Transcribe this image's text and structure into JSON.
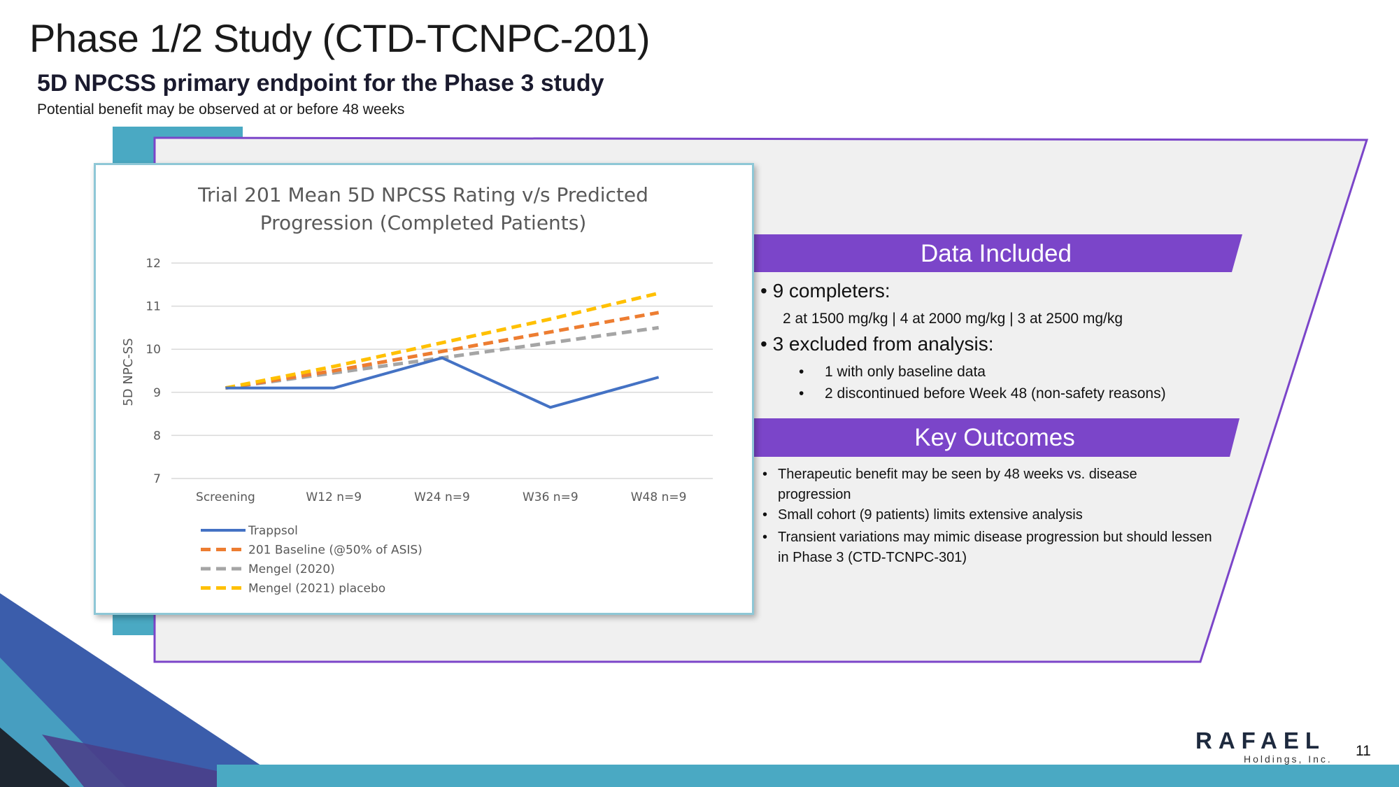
{
  "slide": {
    "title": "Phase 1/2 Study (CTD-TCNPC-201)",
    "subtitle": "5D NPCSS primary endpoint for the Phase 3 study",
    "tagline": "Potential benefit may be observed at or before 48 weeks",
    "page_number": "11"
  },
  "colors": {
    "purple": "#7b45c9",
    "teal": "#4aa9c3",
    "navy_blue": "#3b5dab",
    "dark": "#1e2630",
    "panel_bg": "#f0f0f0"
  },
  "data_included": {
    "heading": "Data Included",
    "completers": "• 9 completers:",
    "doses": "2 at 1500 mg/kg  |  4 at 2000 mg/kg  |  3 at 2500 mg/kg",
    "excluded": "• 3 excluded from analysis:",
    "excluded_items": [
      {
        "bullet": "•",
        "text": "1 with only baseline data"
      },
      {
        "bullet": "•",
        "text": "2 discontinued before Week 48 (non-safety reasons)"
      }
    ]
  },
  "key_outcomes": {
    "heading": "Key Outcomes",
    "items": [
      {
        "bullet": "•",
        "text": "Therapeutic benefit may be seen by 48 weeks vs. disease progression"
      },
      {
        "bullet": "•",
        "text": "Small cohort (9 patients) limits extensive analysis"
      },
      {
        "bullet": "•",
        "text": "Transient variations may mimic disease progression but should lessen in Phase 3 (CTD-TCNPC-301)"
      }
    ]
  },
  "logo": {
    "word": "RAFAEL",
    "sub": "Holdings, Inc."
  },
  "chart_data": {
    "type": "line",
    "title_lines": [
      "Trial 201 Mean 5D NPCSS Rating v/s Predicted",
      "Progression (Completed Patients)"
    ],
    "ylabel": "5D NPC-SS",
    "xlabel": "",
    "categories": [
      "Screening",
      "W12 n=9",
      "W24 n=9",
      "W36 n=9",
      "W48 n=9"
    ],
    "ylim": [
      7,
      12
    ],
    "yticks": [
      7,
      8,
      9,
      10,
      11,
      12
    ],
    "grid": true,
    "legend_position": "bottom-left",
    "series": [
      {
        "name": "Trappsol",
        "color": "#4472c4",
        "dash": "solid",
        "values": [
          9.1,
          9.1,
          9.8,
          8.65,
          9.35
        ]
      },
      {
        "name": "201 Baseline (@50% of ASIS)",
        "color": "#ed7d31",
        "dash": "dashed",
        "values": [
          9.1,
          9.5,
          9.95,
          10.4,
          10.85
        ]
      },
      {
        "name": "Mengel (2020)",
        "color": "#a5a5a5",
        "dash": "dashed",
        "values": [
          9.1,
          9.45,
          9.8,
          10.15,
          10.5
        ]
      },
      {
        "name": "Mengel (2021) placebo",
        "color": "#ffc000",
        "dash": "dashed",
        "values": [
          9.1,
          9.6,
          10.15,
          10.7,
          11.3
        ]
      }
    ]
  }
}
